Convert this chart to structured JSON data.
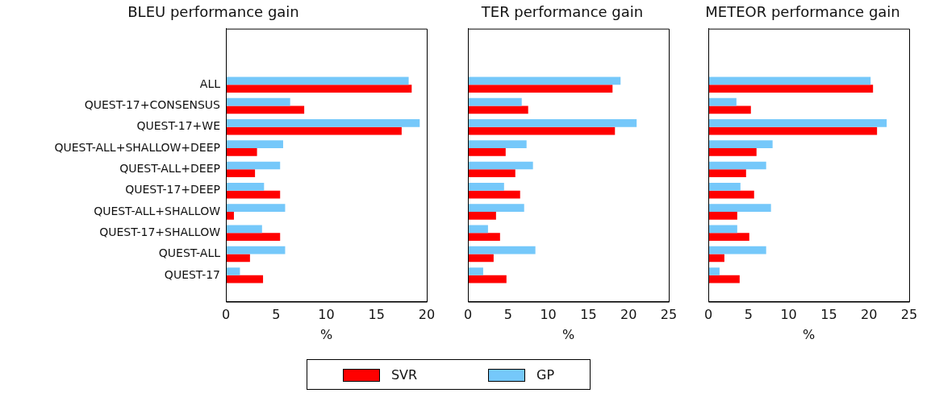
{
  "chart_data": [
    {
      "type": "bar",
      "orientation": "horizontal",
      "title": "BLEU performance gain",
      "xlabel": "%",
      "categories": [
        "ALL",
        "QUEST-17+CONSENSUS",
        "QUEST-17+WE",
        "QUEST-ALL+SHALLOW+DEEP",
        "QUEST-ALL+DEEP",
        "QUEST-17+DEEP",
        "QUEST-ALL+SHALLOW",
        "QUEST-17+SHALLOW",
        "QUEST-ALL",
        "QUEST-17"
      ],
      "xlim": [
        0,
        20
      ],
      "xticks": [
        0,
        5,
        10,
        15,
        20
      ],
      "legend": "bottom",
      "series": [
        {
          "name": "GP",
          "color": "#75c8fa",
          "values": [
            18.2,
            6.4,
            19.3,
            5.7,
            5.4,
            3.8,
            5.9,
            3.6,
            5.9,
            1.4
          ]
        },
        {
          "name": "SVR",
          "color": "#ff0000",
          "values": [
            18.5,
            7.8,
            17.5,
            3.1,
            2.9,
            5.4,
            0.8,
            5.4,
            2.4,
            3.7
          ]
        }
      ]
    },
    {
      "type": "bar",
      "orientation": "horizontal",
      "title": "TER performance gain",
      "xlabel": "%",
      "categories": [
        null,
        null,
        null,
        null,
        null,
        null,
        null,
        null,
        null,
        null
      ],
      "xlim": [
        0,
        25
      ],
      "xticks": [
        0,
        5,
        10,
        15,
        20,
        25
      ],
      "tick_labels": "x",
      "series": [
        {
          "color": "#75c8fa",
          "values": [
            19.0,
            6.7,
            21.0,
            7.3,
            8.1,
            4.5,
            7.0,
            2.5,
            8.4,
            1.9
          ]
        },
        {
          "color": "#ff0000",
          "values": [
            18.0,
            7.5,
            18.3,
            4.7,
            5.9,
            6.5,
            3.5,
            4.0,
            3.2,
            4.8
          ]
        }
      ]
    },
    {
      "type": "bar",
      "orientation": "horizontal",
      "title": "METEOR performance gain",
      "xlabel": "%",
      "categories": [
        null,
        null,
        null,
        null,
        null,
        null,
        null,
        null,
        null,
        null
      ],
      "xlim": [
        0,
        25
      ],
      "xticks": [
        0,
        5,
        10,
        15,
        20,
        25
      ],
      "tick_labels": "x",
      "series": [
        {
          "color": "#75c8fa",
          "values": [
            20.2,
            3.5,
            22.2,
            8.0,
            7.2,
            4.0,
            7.8,
            3.6,
            7.2,
            1.4
          ]
        },
        {
          "color": "#ff0000",
          "values": [
            20.5,
            5.3,
            21.0,
            6.0,
            4.7,
            5.7,
            3.6,
            5.1,
            2.0,
            3.9
          ]
        }
      ]
    }
  ]
}
